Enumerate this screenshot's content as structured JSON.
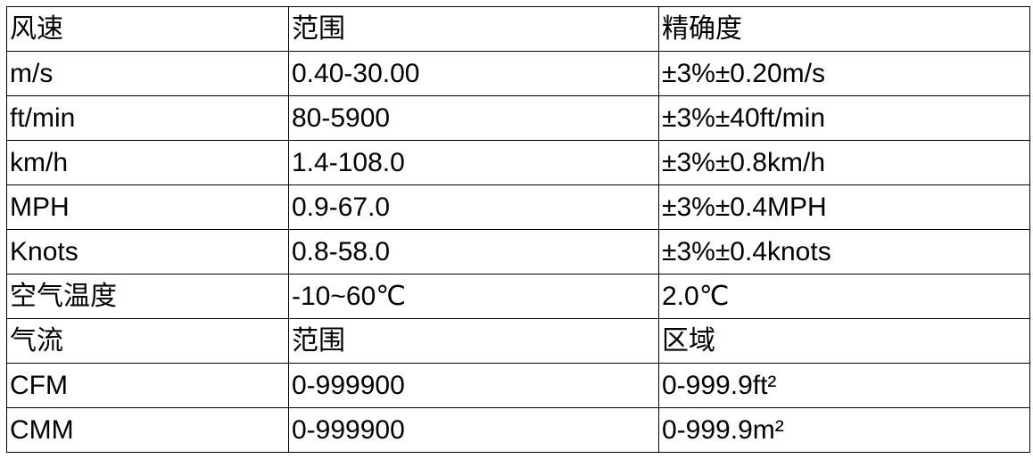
{
  "table": {
    "rows": [
      [
        "风速",
        "范围",
        "精确度"
      ],
      [
        "m/s",
        "0.40-30.00",
        "±3%±0.20m/s"
      ],
      [
        "ft/min",
        "80-5900",
        "±3%±40ft/min"
      ],
      [
        "km/h",
        "1.4-108.0",
        "±3%±0.8km/h"
      ],
      [
        "MPH",
        "0.9-67.0",
        "±3%±0.4MPH"
      ],
      [
        "Knots",
        "0.8-58.0",
        "±3%±0.4knots"
      ],
      [
        "空气温度",
        " -10~60℃",
        "2.0℃"
      ],
      [
        "气流",
        "范围",
        "区域"
      ],
      [
        "CFM",
        "0-999900",
        "0-999.9ft²"
      ],
      [
        "CMM",
        "0-999900",
        "0-999.9m²"
      ]
    ]
  }
}
